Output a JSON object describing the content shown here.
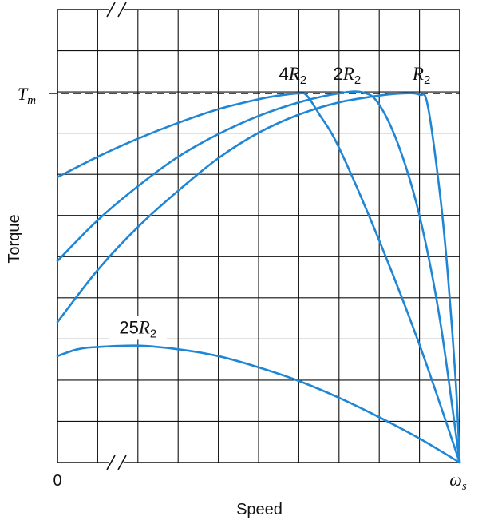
{
  "chart_data": {
    "type": "line",
    "xlabel": "Speed",
    "ylabel": "Torque",
    "x_ticks": [
      {
        "value": 0,
        "label": "0"
      },
      {
        "value": 1,
        "label": "ωs"
      }
    ],
    "reference_line": {
      "label": "Tm",
      "value": 0.815
    },
    "xlim": [
      0,
      1
    ],
    "ylim": [
      0,
      1
    ],
    "grid": true,
    "axis_break": true,
    "series": [
      {
        "name": "R2",
        "label_main": "R",
        "label_sub": "2",
        "points": [
          [
            0,
            0.31
          ],
          [
            0.1,
            0.425
          ],
          [
            0.2,
            0.52
          ],
          [
            0.3,
            0.6
          ],
          [
            0.4,
            0.672
          ],
          [
            0.5,
            0.728
          ],
          [
            0.6,
            0.768
          ],
          [
            0.7,
            0.795
          ],
          [
            0.8,
            0.81
          ],
          [
            0.86,
            0.815
          ],
          [
            0.9,
            0.812
          ],
          [
            0.92,
            0.79
          ],
          [
            0.95,
            0.6
          ],
          [
            0.97,
            0.42
          ],
          [
            0.99,
            0.18
          ],
          [
            1,
            0
          ]
        ]
      },
      {
        "name": "2R2",
        "label_main": "2R",
        "label_sub": "2",
        "points": [
          [
            0,
            0.445
          ],
          [
            0.1,
            0.535
          ],
          [
            0.2,
            0.61
          ],
          [
            0.3,
            0.675
          ],
          [
            0.4,
            0.725
          ],
          [
            0.5,
            0.765
          ],
          [
            0.6,
            0.795
          ],
          [
            0.7,
            0.815
          ],
          [
            0.76,
            0.817
          ],
          [
            0.8,
            0.79
          ],
          [
            0.85,
            0.695
          ],
          [
            0.9,
            0.545
          ],
          [
            0.95,
            0.32
          ],
          [
            1,
            0
          ]
        ]
      },
      {
        "name": "4R2",
        "label_main": "4R",
        "label_sub": "2",
        "points": [
          [
            0,
            0.63
          ],
          [
            0.1,
            0.675
          ],
          [
            0.2,
            0.715
          ],
          [
            0.3,
            0.75
          ],
          [
            0.4,
            0.78
          ],
          [
            0.5,
            0.802
          ],
          [
            0.55,
            0.81
          ],
          [
            0.6,
            0.815
          ],
          [
            0.62,
            0.81
          ],
          [
            0.65,
            0.77
          ],
          [
            0.7,
            0.695
          ],
          [
            0.8,
            0.49
          ],
          [
            0.9,
            0.26
          ],
          [
            1,
            0
          ]
        ]
      },
      {
        "name": "25R2",
        "label_main": "25R",
        "label_sub": "2",
        "points": [
          [
            0,
            0.235
          ],
          [
            0.05,
            0.25
          ],
          [
            0.1,
            0.255
          ],
          [
            0.2,
            0.258
          ],
          [
            0.3,
            0.25
          ],
          [
            0.4,
            0.235
          ],
          [
            0.5,
            0.21
          ],
          [
            0.6,
            0.18
          ],
          [
            0.7,
            0.143
          ],
          [
            0.8,
            0.1
          ],
          [
            0.9,
            0.053
          ],
          [
            1,
            0
          ]
        ]
      }
    ],
    "colors": {
      "curve": "#1f86d6",
      "grid": "#111111",
      "reference": "#111111"
    }
  }
}
